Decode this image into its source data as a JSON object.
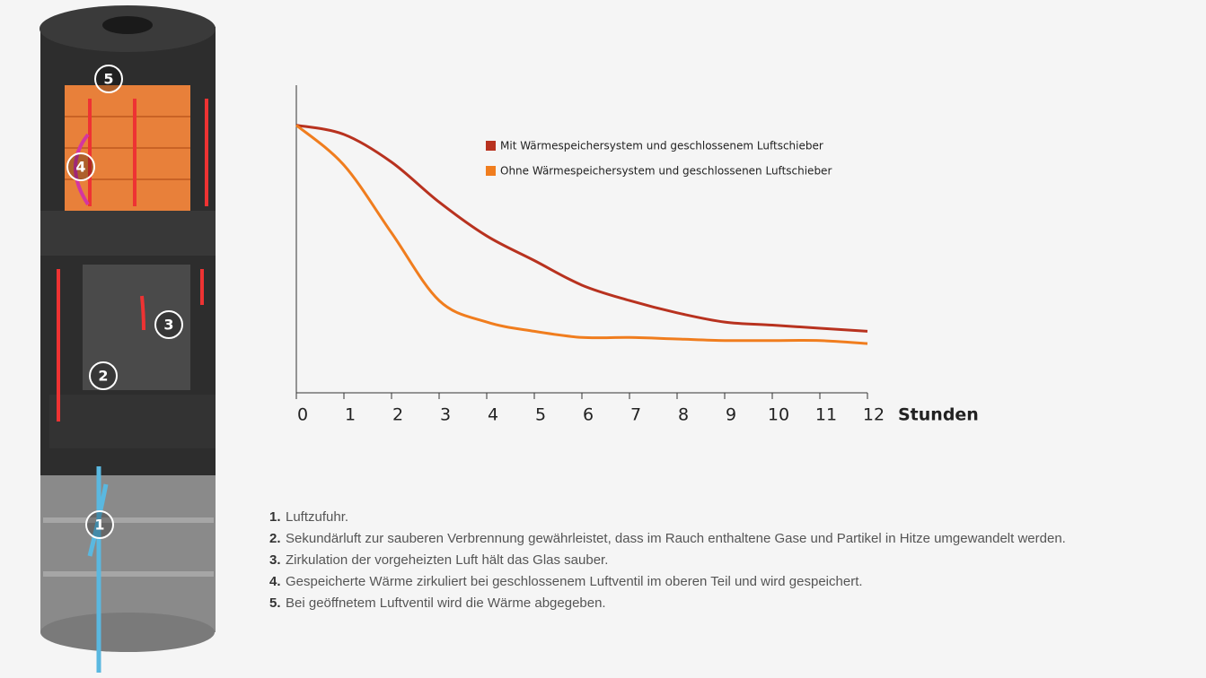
{
  "chart_data": {
    "type": "line",
    "x": [
      0,
      1,
      2,
      3,
      4,
      5,
      6,
      7,
      8,
      9,
      10,
      11,
      12
    ],
    "xlabel": "Stunden",
    "xlim": [
      0,
      12
    ],
    "xticks": [
      0,
      1,
      2,
      3,
      4,
      5,
      6,
      7,
      8,
      9,
      10,
      11,
      12
    ],
    "ylim": [
      0,
      100
    ],
    "series": [
      {
        "name": "Mit Wärmespeichersystem und geschlossenem Luftschieber",
        "color": "#b8321f",
        "values": [
          87,
          84,
          75,
          62,
          51,
          43,
          35,
          30,
          26,
          23,
          22,
          21,
          20
        ]
      },
      {
        "name": "Ohne Wärmespeichersystem und geschlossenen Luftschieber",
        "color": "#f07d1e",
        "values": [
          87,
          74,
          52,
          30,
          23,
          20,
          18,
          18,
          17.5,
          17,
          17,
          17,
          16
        ]
      }
    ]
  },
  "stove_labels": [
    "1",
    "2",
    "3",
    "4",
    "5"
  ],
  "notes": [
    {
      "number": "1.",
      "text": "Luftzufuhr."
    },
    {
      "number": "2.",
      "text": "Sekundärluft zur sauberen Verbrennung gewährleistet, dass im Rauch enthaltene Gase und Partikel in Hitze umgewandelt werden."
    },
    {
      "number": "3.",
      "text": "Zirkulation der vorgeheizten Luft hält das Glas sauber."
    },
    {
      "number": "4.",
      "text": "Gespeicherte Wärme zirkuliert bei geschlossenem Luftventil im oberen Teil und wird gespeichert."
    },
    {
      "number": "5.",
      "text": "Bei geöffnetem Luftventil wird die Wärme abgegeben."
    }
  ]
}
